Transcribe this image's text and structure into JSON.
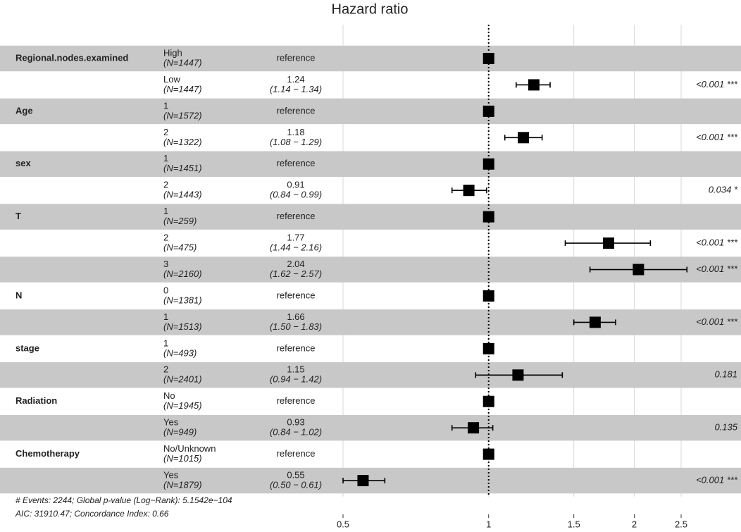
{
  "chart_data": {
    "type": "forest",
    "title": "Hazard ratio",
    "variables": [
      "Regional.nodes.examined",
      null,
      "Age",
      null,
      "sex",
      null,
      "T",
      null,
      null,
      "N",
      null,
      "stage",
      null,
      "Radiation",
      null,
      "Chemotherapy",
      null
    ],
    "categories": [
      "High",
      "Low",
      "1",
      "2",
      "1",
      "2",
      "1",
      "2",
      "3",
      "0",
      "1",
      "1",
      "2",
      "No",
      "Yes",
      "No/Unknown",
      "Yes"
    ],
    "n_labels": [
      "(N=1447)",
      "(N=1447)",
      "(N=1572)",
      "(N=1322)",
      "(N=1451)",
      "(N=1443)",
      "(N=259)",
      "(N=475)",
      "(N=2160)",
      "(N=1381)",
      "(N=1513)",
      "(N=493)",
      "(N=2401)",
      "(N=1945)",
      "(N=949)",
      "(N=1015)",
      "(N=1879)"
    ],
    "values": [
      1,
      1.24,
      1,
      1.18,
      1,
      0.91,
      1,
      1.77,
      2.04,
      1,
      1.66,
      1,
      1.15,
      1,
      0.93,
      1,
      0.55
    ],
    "value_labels": [
      "reference",
      "1.24",
      "reference",
      "1.18",
      "reference",
      "0.91",
      "reference",
      "1.77",
      "2.04",
      "reference",
      "1.66",
      "reference",
      "1.15",
      "reference",
      "0.93",
      "reference",
      "0.55"
    ],
    "ci_low": [
      null,
      1.14,
      null,
      1.08,
      null,
      0.84,
      null,
      1.44,
      1.62,
      null,
      1.5,
      null,
      0.94,
      null,
      0.84,
      null,
      0.5
    ],
    "ci_high": [
      null,
      1.34,
      null,
      1.29,
      null,
      0.99,
      null,
      2.16,
      2.57,
      null,
      1.83,
      null,
      1.42,
      null,
      1.02,
      null,
      0.61
    ],
    "ci_labels": [
      null,
      "(1.14 − 1.34)",
      null,
      "(1.08 − 1.29)",
      null,
      "(0.84 − 0.99)",
      null,
      "(1.44 − 2.16)",
      "(1.62 − 2.57)",
      null,
      "(1.50 − 1.83)",
      null,
      "(0.94 − 1.42)",
      null,
      "(0.84 − 1.02)",
      null,
      "(0.50 − 0.61)"
    ],
    "p_labels": [
      null,
      "<0.001 ***",
      null,
      "<0.001 ***",
      null,
      "0.034 *",
      null,
      "<0.001 ***",
      "<0.001 ***",
      null,
      "<0.001 ***",
      null,
      "0.181",
      null,
      "0.135",
      null,
      "<0.001 ***"
    ],
    "xscale": "log",
    "xlim": [
      0.5,
      2.5
    ],
    "xticks": [
      0.5,
      1,
      1.5,
      2,
      2.5
    ],
    "reference_line": 1,
    "grid": true,
    "color": "#000000",
    "stripe_color": "#c8c8c8",
    "footnote": [
      "# Events: 2244; Global p-value (Log−Rank): 5.1542e−104",
      "AIC: 31910.47; Concordance Index: 0.66"
    ]
  }
}
